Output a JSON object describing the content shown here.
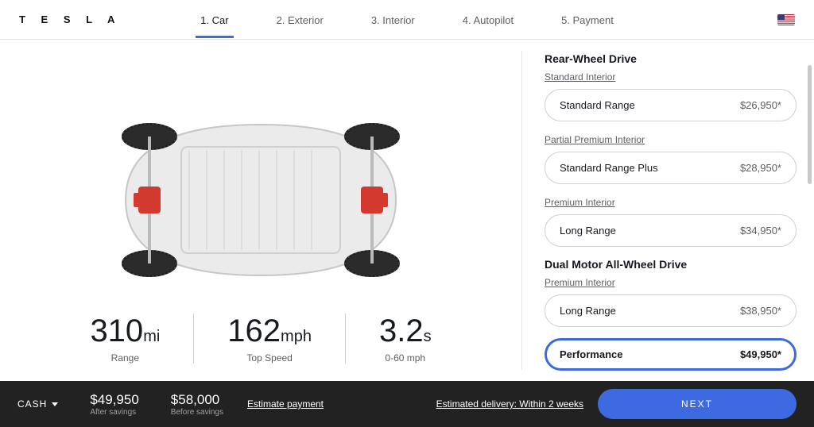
{
  "brand": "T E S L A",
  "steps": [
    {
      "num": "1.",
      "label": "Car",
      "active": true
    },
    {
      "num": "2.",
      "label": "Exterior",
      "active": false
    },
    {
      "num": "3.",
      "label": "Interior",
      "active": false
    },
    {
      "num": "4.",
      "label": "Autopilot",
      "active": false
    },
    {
      "num": "5.",
      "label": "Payment",
      "active": false
    }
  ],
  "car_illustration": {
    "body_fill": "#e8e8e8",
    "body_stroke": "#bdbdbd",
    "tire_fill": "#2b2b2b",
    "tire_stroke": "#1a1a1a",
    "motor_fill": "#d33a2f",
    "battery_stroke": "#cfcfcf"
  },
  "stats": [
    {
      "value": "310",
      "unit": "mi",
      "label": "Range"
    },
    {
      "value": "162",
      "unit": "mph",
      "label": "Top Speed"
    },
    {
      "value": "3.2",
      "unit": "s",
      "label": "0-60 mph"
    }
  ],
  "config": {
    "drives": [
      {
        "heading": "Rear-Wheel Drive",
        "groups": [
          {
            "interior": "Standard Interior",
            "options": [
              {
                "name": "Standard Range",
                "price": "$26,950*",
                "selected": false
              }
            ]
          },
          {
            "interior": "Partial Premium Interior",
            "options": [
              {
                "name": "Standard Range Plus",
                "price": "$28,950*",
                "selected": false
              }
            ]
          },
          {
            "interior": "Premium Interior",
            "options": [
              {
                "name": "Long Range",
                "price": "$34,950*",
                "selected": false
              }
            ]
          }
        ]
      },
      {
        "heading": "Dual Motor All-Wheel Drive",
        "groups": [
          {
            "interior": "Premium Interior",
            "options": [
              {
                "name": "Long Range",
                "price": "$38,950*",
                "selected": false
              },
              {
                "name": "Performance",
                "price": "$49,950*",
                "selected": true
              }
            ]
          }
        ]
      }
    ]
  },
  "footer": {
    "cash_label": "CASH",
    "after": {
      "amount": "$49,950",
      "label": "After savings"
    },
    "before": {
      "amount": "$58,000",
      "label": "Before savings"
    },
    "estimate_link": "Estimate payment",
    "delivery": "Estimated delivery: Within 2 weeks",
    "next": "NEXT"
  },
  "colors": {
    "accent": "#3e6ae1",
    "footer_bg": "#222222",
    "text_muted": "#5c5e62",
    "border": "#d0d0d0"
  }
}
